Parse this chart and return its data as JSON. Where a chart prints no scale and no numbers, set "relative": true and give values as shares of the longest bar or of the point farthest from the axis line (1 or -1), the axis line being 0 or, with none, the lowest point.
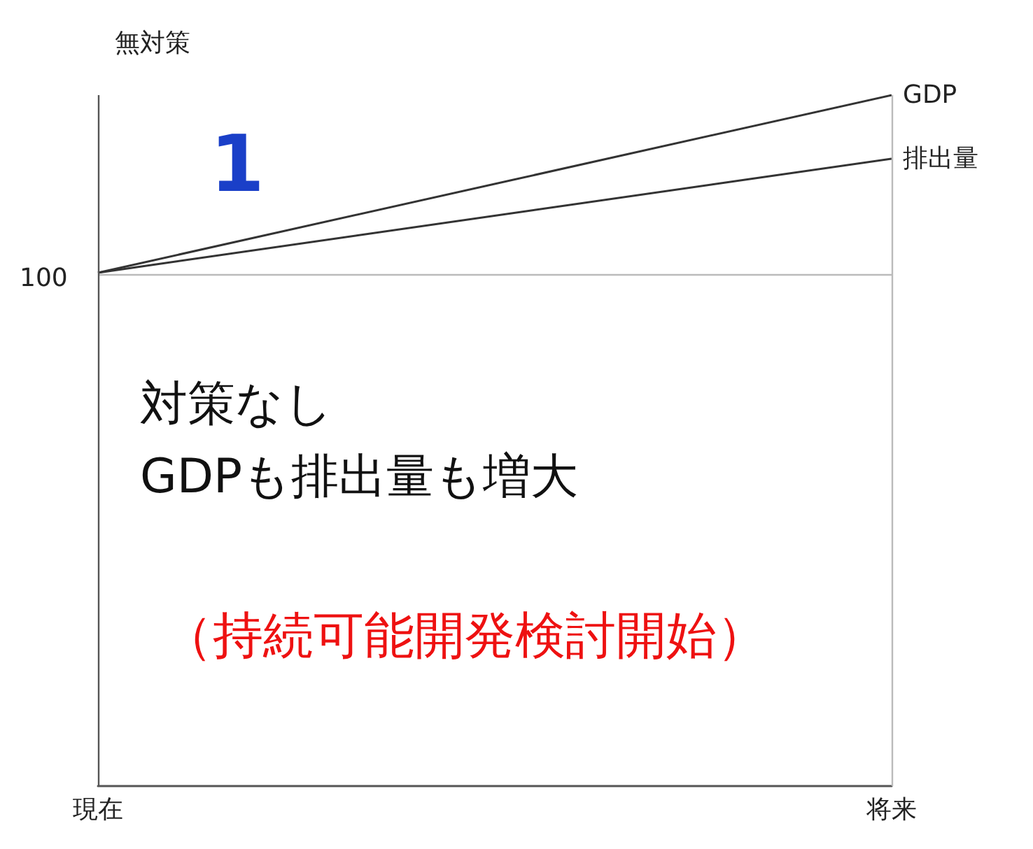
{
  "chart_data": {
    "type": "line",
    "relative": true,
    "ylabel": "無対策",
    "categories": [
      "現在",
      "将来"
    ],
    "series": [
      {
        "name": "GDP",
        "color": "#333333",
        "values": [
          0.743,
          1
        ]
      },
      {
        "name": "排出量",
        "color": "#333333",
        "values": [
          0.743,
          0.908
        ]
      }
    ],
    "ref_lines": [
      {
        "axis": "y",
        "value": 0.743,
        "color": "#bbbbbb"
      },
      {
        "axis": "x",
        "value": "現在",
        "color": "#555555"
      },
      {
        "axis": "x",
        "value": "将来",
        "color": "#bbbbbb"
      }
    ],
    "annotations": [
      "1",
      "対策なし\nGDPも排出量も増大",
      "（持続可能開発検討開始）",
      "100"
    ],
    "legend": false,
    "marker": "none",
    "line_style": "solid"
  }
}
